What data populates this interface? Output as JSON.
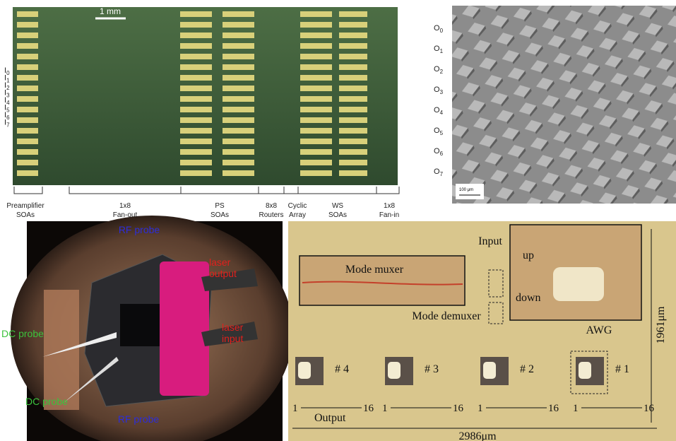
{
  "chip_layout": {
    "scale_bar": "1 mm",
    "inputs": {
      "letter": "I",
      "indices": [
        "0",
        "1",
        "2",
        "3",
        "4",
        "5",
        "6",
        "7"
      ]
    },
    "outputs": {
      "letter": "O",
      "indices": [
        "0",
        "1",
        "2",
        "3",
        "4",
        "5",
        "6",
        "7"
      ]
    },
    "sections": [
      {
        "line1": "Preamplifier",
        "line2": "SOAs"
      },
      {
        "line1": "1x8",
        "line2": "Fan-out"
      },
      {
        "line1": "PS",
        "line2": "SOAs"
      },
      {
        "line1": "8x8",
        "line2": "Routers"
      },
      {
        "line1": "Cyclic",
        "line2": "Array"
      },
      {
        "line1": "WS",
        "line2": "SOAs"
      },
      {
        "line1": "1x8",
        "line2": "Fan-in"
      }
    ]
  },
  "sem_image": {
    "scale_bar": "100 μm"
  },
  "package_photo": {
    "labels": [
      {
        "text": [
          "RF probe"
        ],
        "color": "#2d2dd8"
      },
      {
        "text": [
          "laser",
          "output"
        ],
        "color": "#e0201c"
      },
      {
        "text": [
          "DC probe"
        ],
        "color": "#3cc23c"
      },
      {
        "text": [
          "laser",
          "input"
        ],
        "color": "#e0201c"
      },
      {
        "text": [
          "DC probe"
        ],
        "color": "#3cc23c"
      },
      {
        "text": [
          "RF probe"
        ],
        "color": "#2d2dd8"
      }
    ]
  },
  "micrograph": {
    "input": "Input",
    "mode_muxer": "Mode muxer",
    "mode_demuxer": "Mode demuxer",
    "up": "up",
    "down": "down",
    "awg": "AWG",
    "height": "1961μm",
    "units": [
      "# 4",
      "# 3",
      "# 2",
      "# 1"
    ],
    "port_ranges": [
      [
        "1",
        "16"
      ],
      [
        "1",
        "16"
      ],
      [
        "1",
        "16"
      ],
      [
        "1",
        "16"
      ]
    ],
    "output": "Output",
    "width": "2986μm"
  }
}
